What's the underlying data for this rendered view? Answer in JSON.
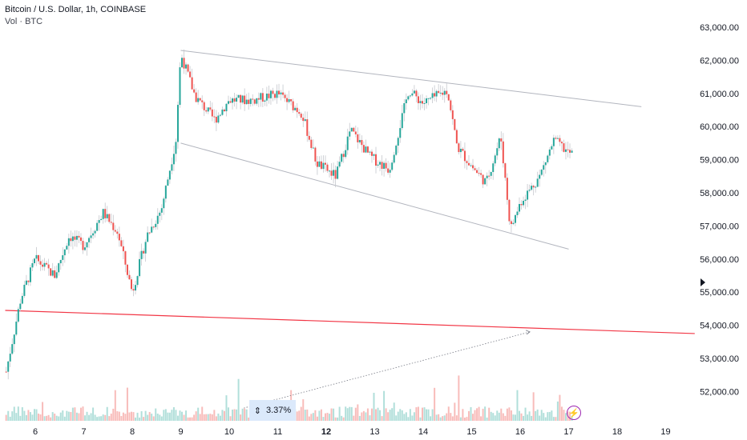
{
  "legend": {
    "title": "Bitcoin / U.S. Dollar, 1h, COINBASE",
    "volume_label": "Vol · BTC"
  },
  "measure_label": "3.37%",
  "chart_data": {
    "type": "candlestick",
    "y_ticks": [
      "63,000.00",
      "62,000.00",
      "61,000.00",
      "60,000.00",
      "59,000.00",
      "58,000.00",
      "57,000.00",
      "56,000.00",
      "55,000.00",
      "54,000.00",
      "53,000.00",
      "52,000.00"
    ],
    "y_tick_values": [
      63000,
      62000,
      61000,
      60000,
      59000,
      58000,
      57000,
      56000,
      55000,
      54000,
      53000,
      52000
    ],
    "x_ticks": [
      "6",
      "7",
      "8",
      "9",
      "10",
      "11",
      "12",
      "13",
      "14",
      "15",
      "16",
      "17",
      "18",
      "19"
    ],
    "x_tick_values": [
      6,
      7,
      8,
      9,
      10,
      11,
      12,
      13,
      14,
      15,
      16,
      17,
      18,
      19
    ],
    "bold_x_tick": "12",
    "ylim": [
      51000,
      63400
    ],
    "xlim": [
      5.38,
      19.6
    ],
    "colors": {
      "up": "#26a69a",
      "down": "#ef5350",
      "trendline": "#b2b5be",
      "support": "#f23645",
      "wick": "#c5c7cd"
    },
    "anchors": [
      [
        5.4,
        52600
      ],
      [
        5.7,
        54800
      ],
      [
        6.0,
        56000
      ],
      [
        6.4,
        55500
      ],
      [
        6.7,
        56700
      ],
      [
        7.0,
        56400
      ],
      [
        7.4,
        57400
      ],
      [
        7.7,
        56800
      ],
      [
        8.0,
        55000
      ],
      [
        8.3,
        56700
      ],
      [
        8.6,
        57500
      ],
      [
        8.9,
        59600
      ],
      [
        9.0,
        62200
      ],
      [
        9.3,
        60900
      ],
      [
        9.7,
        60200
      ],
      [
        10.0,
        60800
      ],
      [
        10.5,
        60800
      ],
      [
        11.0,
        61000
      ],
      [
        11.5,
        60400
      ],
      [
        11.8,
        58900
      ],
      [
        12.2,
        58500
      ],
      [
        12.5,
        59900
      ],
      [
        12.9,
        59100
      ],
      [
        13.3,
        58700
      ],
      [
        13.7,
        61100
      ],
      [
        14.0,
        60700
      ],
      [
        14.5,
        61100
      ],
      [
        14.7,
        59400
      ],
      [
        15.0,
        58800
      ],
      [
        15.3,
        58300
      ],
      [
        15.6,
        59700
      ],
      [
        15.8,
        56900
      ],
      [
        16.0,
        57700
      ],
      [
        16.4,
        58500
      ],
      [
        16.7,
        59600
      ],
      [
        17.0,
        59200
      ]
    ],
    "trendlines": [
      {
        "name": "upper",
        "from": [
          9.0,
          62300
        ],
        "to": [
          18.5,
          60600
        ]
      },
      {
        "name": "lower",
        "from": [
          9.0,
          59500
        ],
        "to": [
          17.0,
          56300
        ]
      },
      {
        "name": "support",
        "from": [
          5.38,
          54450
        ],
        "to": [
          19.6,
          53750
        ]
      }
    ],
    "projection": {
      "from": [
        10.3,
        51500
      ],
      "to": [
        16.2,
        53800
      ]
    }
  }
}
